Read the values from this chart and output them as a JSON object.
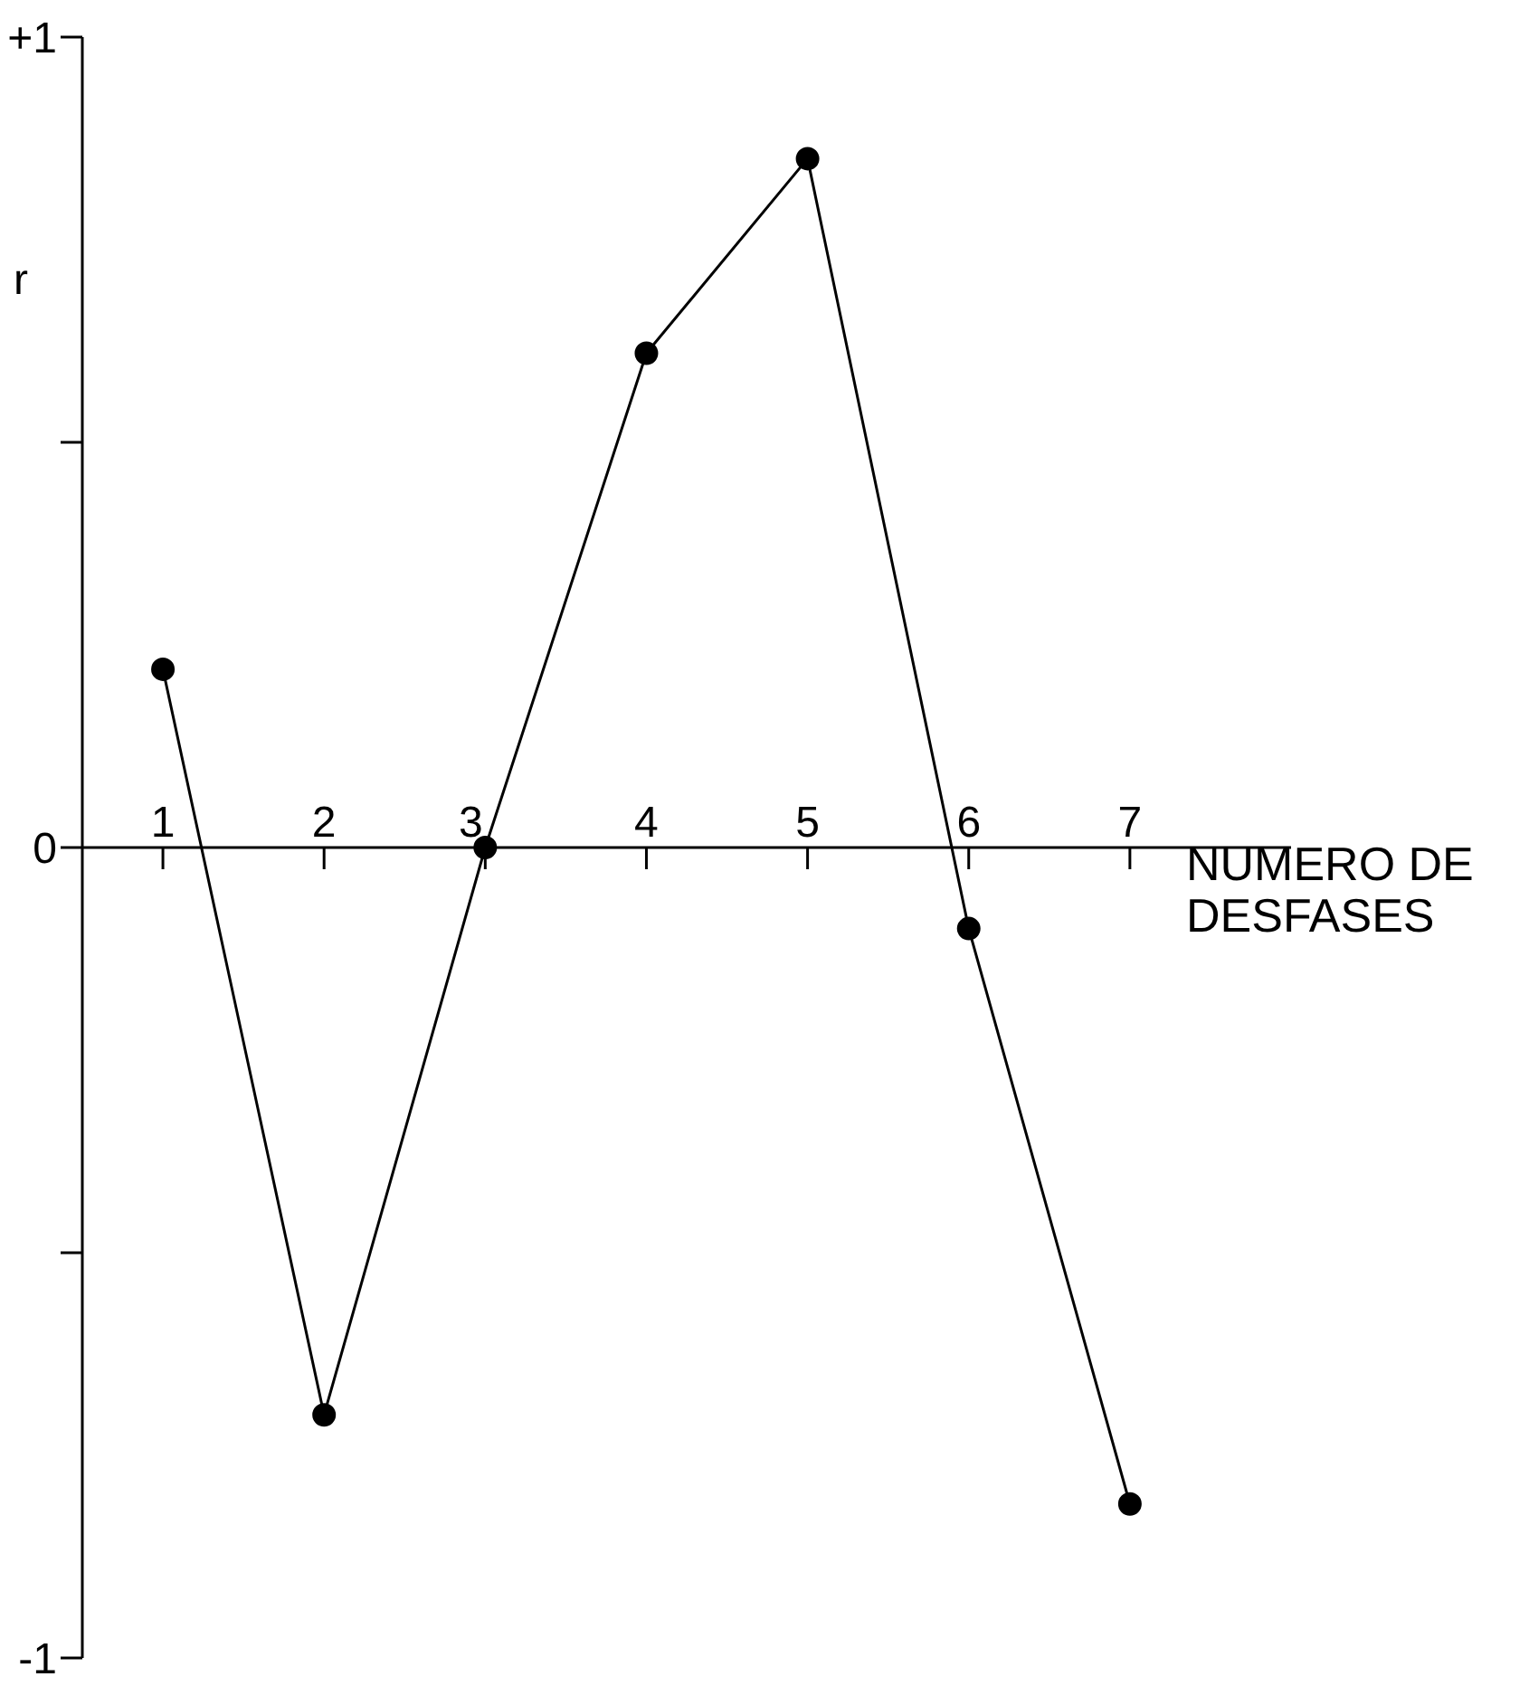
{
  "chart_data": {
    "type": "line",
    "xlabel": "NUMERO DE DESFASES",
    "ylabel": "r",
    "x": [
      1,
      2,
      3,
      4,
      5,
      6,
      7
    ],
    "series": [
      {
        "color": "#000000",
        "values": [
          0.22,
          -0.7,
          0.0,
          0.61,
          0.85,
          -0.1,
          -0.81
        ]
      }
    ],
    "xlim": [
      0.5,
      8.0
    ],
    "xticks": [
      1,
      2,
      3,
      4,
      5,
      6,
      7
    ],
    "ylim": [
      -1,
      1
    ],
    "yticks": [
      {
        "value": -1,
        "label": "-1"
      },
      {
        "value": -0.5,
        "label": null
      },
      0,
      {
        "value": 0.5,
        "label": null
      },
      {
        "value": 1,
        "label": "+1"
      }
    ],
    "marker": "circle",
    "line_style": "solid",
    "grid": false
  }
}
